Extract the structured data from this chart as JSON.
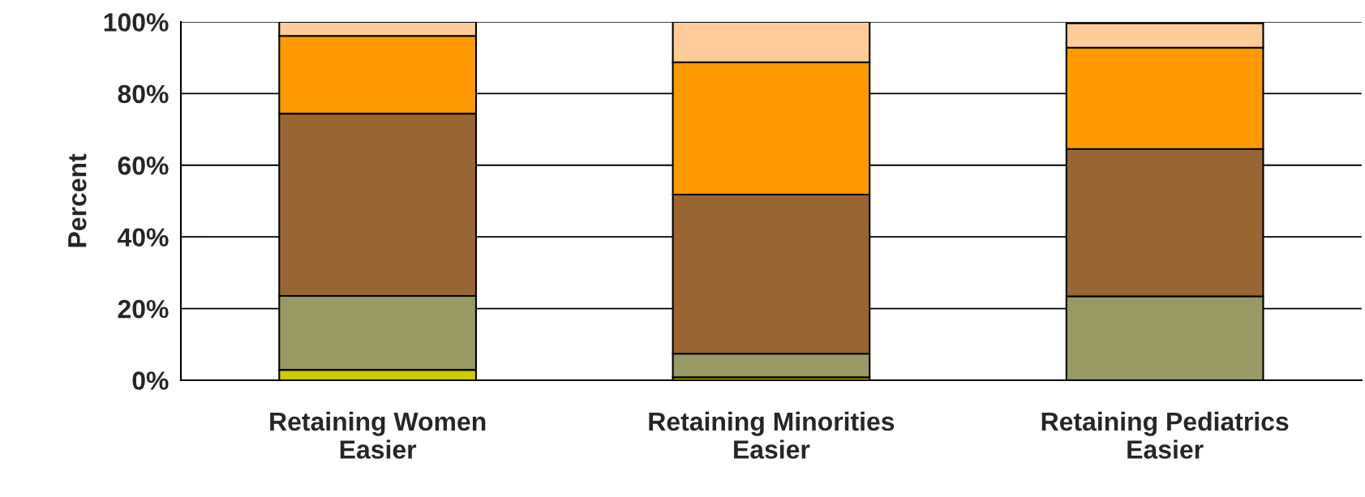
{
  "chart_data": {
    "type": "bar",
    "ylabel": "Percent",
    "stacked": true,
    "categories": [
      "Retaining Women\nEasier",
      "Retaining Minorities\nEasier",
      "Retaining Pediatrics\nEasier"
    ],
    "series": [
      {
        "color": "#cccc00",
        "values": [
          2.9,
          0.8,
          null
        ]
      },
      {
        "color": "#999966",
        "values": [
          20.6,
          6.6,
          23.4
        ]
      },
      {
        "color": "#996633",
        "values": [
          50.9,
          44.4,
          41.1
        ]
      },
      {
        "color": "#ff9900",
        "values": [
          21.7,
          36.9,
          28.3
        ]
      },
      {
        "color": "#ffcc99",
        "values": [
          3.9,
          11.3,
          6.8
        ]
      }
    ],
    "ylim": [
      0,
      100
    ],
    "yticks": [
      {
        "value": 0,
        "label": "0%"
      },
      {
        "value": 20,
        "label": "20%"
      },
      {
        "value": 40,
        "label": "40%"
      },
      {
        "value": 60,
        "label": "60%"
      },
      {
        "value": 80,
        "label": "80%"
      },
      {
        "value": 100,
        "label": "100%"
      }
    ],
    "grid": "y",
    "legend": false
  }
}
